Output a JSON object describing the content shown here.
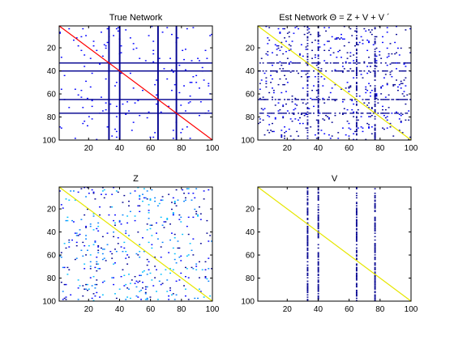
{
  "figure": {
    "background": "#ffffff"
  },
  "chart_data": [
    {
      "type": "heatmap",
      "id": "true-network",
      "title": "True Network",
      "size": 100,
      "xlim": [
        1,
        100
      ],
      "ylim": [
        1,
        100
      ],
      "y_reversed": true,
      "xticks": [
        20,
        40,
        60,
        80,
        100
      ],
      "yticks": [
        20,
        40,
        60,
        80,
        100
      ],
      "grid": false,
      "diagonal": {
        "color": "#ff0000"
      },
      "hub_columns": [
        33,
        40,
        65,
        77
      ],
      "hub_rows": [
        33,
        40,
        65,
        77
      ],
      "hub_color": "#00008f",
      "scatter_density": 0.02,
      "scatter_colors": [
        "#0000ff"
      ],
      "seed": 7
    },
    {
      "type": "heatmap",
      "id": "est-network",
      "title": "Est Network  Θ = Z + V + V ´",
      "size": 100,
      "xlim": [
        1,
        100
      ],
      "ylim": [
        1,
        100
      ],
      "y_reversed": true,
      "xticks": [
        20,
        40,
        60,
        80,
        100
      ],
      "yticks": [
        20,
        40,
        60,
        80,
        100
      ],
      "grid": false,
      "diagonal": {
        "color": "#e6e600"
      },
      "hub_columns": [
        33,
        40,
        65,
        77
      ],
      "hub_rows": [
        33,
        40,
        65,
        77
      ],
      "hub_color": "#00008f",
      "hub_fill": 0.55,
      "scatter_density": 0.05,
      "scatter_colors": [
        "#0000ff",
        "#00008f"
      ],
      "seed": 13
    },
    {
      "type": "heatmap",
      "id": "z",
      "title": "Z",
      "size": 100,
      "xlim": [
        1,
        100
      ],
      "ylim": [
        1,
        100
      ],
      "y_reversed": true,
      "xticks": [
        20,
        40,
        60,
        80,
        100
      ],
      "yticks": [
        20,
        40,
        60,
        80,
        100
      ],
      "grid": false,
      "diagonal": {
        "color": "#e6e600"
      },
      "hub_columns": [],
      "hub_rows": [],
      "hub_color": "#00008f",
      "scatter_density": 0.045,
      "scatter_colors": [
        "#0000ff",
        "#00008f",
        "#00bfff",
        "#0080ff"
      ],
      "seed": 29
    },
    {
      "type": "heatmap",
      "id": "v",
      "title": "V",
      "size": 100,
      "xlim": [
        1,
        100
      ],
      "ylim": [
        1,
        100
      ],
      "y_reversed": true,
      "xticks": [
        20,
        40,
        60,
        80,
        100
      ],
      "yticks": [
        20,
        40,
        60,
        80,
        100
      ],
      "grid": false,
      "diagonal": {
        "color": "#e6e600"
      },
      "hub_columns": [
        33,
        40,
        65,
        77
      ],
      "hub_rows": [],
      "hub_color": "#00008f",
      "hub_fill": 0.7,
      "scatter_density": 0,
      "scatter_colors": [
        "#0000ff"
      ],
      "seed": 3
    }
  ]
}
